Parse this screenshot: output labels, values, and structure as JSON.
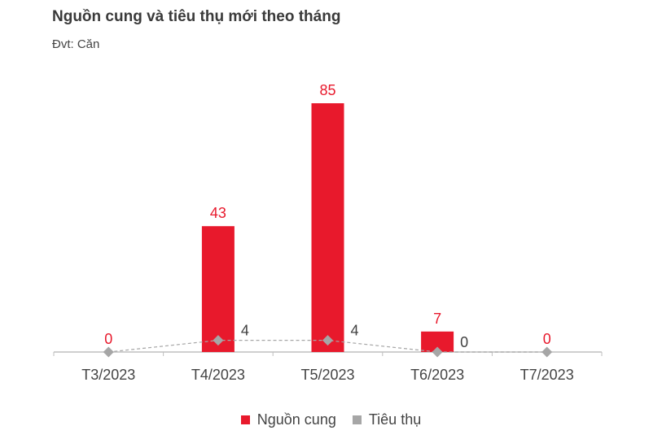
{
  "title": "Nguồn cung và tiêu thụ mới theo tháng",
  "subtitle": "Đvt: Căn",
  "colors": {
    "supply": "#e8192c",
    "consumption": "#a6a6a6",
    "axis": "#bfbfbf"
  },
  "chart_data": {
    "type": "bar",
    "categories": [
      "T3/2023",
      "T4/2023",
      "T5/2023",
      "T6/2023",
      "T7/2023"
    ],
    "series": [
      {
        "name": "Nguồn cung",
        "type": "bar",
        "values": [
          0,
          43,
          85,
          7,
          0
        ]
      },
      {
        "name": "Tiêu thụ",
        "type": "line",
        "values": [
          0,
          4,
          4,
          0,
          0
        ]
      }
    ],
    "ylim": [
      0,
      85
    ],
    "grid": false,
    "legend": "bottom"
  }
}
